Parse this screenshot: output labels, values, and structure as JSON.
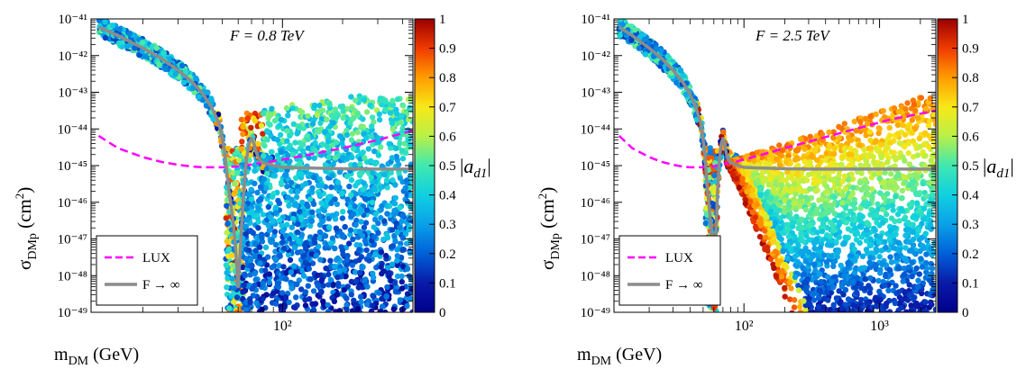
{
  "chart_data": [
    {
      "type": "scatter",
      "annotation": "F = 0.8 TeV",
      "xlabel": "m_DM (GeV)",
      "ylabel": "σ_DMp (cm²)",
      "xscale": "log",
      "yscale": "log",
      "xlim": [
        11,
        450
      ],
      "ylim": [
        1e-49,
        1e-41
      ],
      "x_ticks": [
        {
          "value": 100,
          "label": "10²"
        }
      ],
      "y_ticks": [
        {
          "value": 1e-41,
          "label": "10⁻⁴¹"
        },
        {
          "value": 1e-42,
          "label": "10⁻⁴²"
        },
        {
          "value": 1e-43,
          "label": "10⁻⁴³"
        },
        {
          "value": 1e-44,
          "label": "10⁻⁴⁴"
        },
        {
          "value": 1e-45,
          "label": "10⁻⁴⁵"
        },
        {
          "value": 1e-46,
          "label": "10⁻⁴⁶"
        },
        {
          "value": 1e-47,
          "label": "10⁻⁴⁷"
        },
        {
          "value": 1e-48,
          "label": "10⁻⁴⁸"
        },
        {
          "value": 1e-49,
          "label": "10⁻⁴⁹"
        }
      ],
      "colorbar": {
        "label": "|a_d1|",
        "min": 0,
        "max": 1,
        "ticks": [
          "0",
          "0.1",
          "0.2",
          "0.3",
          "0.4",
          "0.5",
          "0.6",
          "0.7",
          "0.8",
          "0.9",
          "1"
        ]
      },
      "legend": {
        "position": "bottom-left",
        "entries": [
          {
            "label": "LUX",
            "color": "#ff00ff",
            "style": "dashed"
          },
          {
            "label": "F → ∞",
            "color": "#8c8c8c",
            "style": "solid"
          }
        ]
      },
      "series": [
        {
          "name": "LUX",
          "color": "#ff00ff",
          "style": "dashed",
          "x": [
            12,
            15,
            20,
            25,
            30,
            35,
            40,
            50,
            60,
            80,
            100,
            150,
            200,
            300,
            450
          ],
          "y": [
            6.5e-45,
            3e-45,
            1.7e-45,
            1.25e-45,
            1.05e-45,
            9.5e-46,
            9e-46,
            9e-46,
            9.5e-46,
            1.2e-45,
            1.45e-45,
            2.2e-45,
            3e-45,
            5e-45,
            9e-45
          ]
        },
        {
          "name": "F → ∞",
          "color": "#8c8c8c",
          "style": "solid",
          "x": [
            12,
            15,
            20,
            25,
            30,
            35,
            40,
            44,
            48,
            51,
            54,
            56,
            58,
            60,
            62,
            64,
            66,
            68,
            70,
            72,
            74,
            77,
            80,
            85,
            90,
            100,
            120,
            150,
            200,
            300,
            450
          ],
          "y": [
            6e-42,
            3.5e-42,
            1.6e-42,
            8e-43,
            4e-43,
            2e-43,
            9e-44,
            4e-44,
            1.5e-44,
            3e-45,
            2e-46,
            5e-47,
            8e-48,
            5e-49,
            1.2e-47,
            2e-46,
            1.5e-45,
            4e-45,
            5.5e-45,
            4e-45,
            2.2e-45,
            1.4e-45,
            1.2e-45,
            1.1e-45,
            1e-45,
            9e-46,
            8.7e-46,
            8.5e-46,
            8.2e-46,
            8e-46,
            8e-46
          ]
        }
      ]
    },
    {
      "type": "scatter",
      "annotation": "F = 2.5 TeV",
      "xlabel": "m_DM (GeV)",
      "ylabel": "σ_DMp (cm²)",
      "xscale": "log",
      "yscale": "log",
      "xlim": [
        11,
        2600
      ],
      "ylim": [
        1e-49,
        1e-41
      ],
      "x_ticks": [
        {
          "value": 100,
          "label": "10²"
        },
        {
          "value": 1000,
          "label": "10³"
        }
      ],
      "y_ticks": [
        {
          "value": 1e-41,
          "label": "10⁻⁴¹"
        },
        {
          "value": 1e-42,
          "label": "10⁻⁴²"
        },
        {
          "value": 1e-43,
          "label": "10⁻⁴³"
        },
        {
          "value": 1e-44,
          "label": "10⁻⁴⁴"
        },
        {
          "value": 1e-45,
          "label": "10⁻⁴⁵"
        },
        {
          "value": 1e-46,
          "label": "10⁻⁴⁶"
        },
        {
          "value": 1e-47,
          "label": "10⁻⁴⁷"
        },
        {
          "value": 1e-48,
          "label": "10⁻⁴⁸"
        },
        {
          "value": 1e-49,
          "label": "10⁻⁴⁹"
        }
      ],
      "colorbar": {
        "label": "|a_d1|",
        "min": 0,
        "max": 1,
        "ticks": [
          "0",
          "0.1",
          "0.2",
          "0.3",
          "0.4",
          "0.5",
          "0.6",
          "0.7",
          "0.8",
          "0.9",
          "1"
        ]
      },
      "legend": {
        "position": "bottom-left",
        "entries": [
          {
            "label": "LUX",
            "color": "#ff00ff",
            "style": "dashed"
          },
          {
            "label": "F → ∞",
            "color": "#8c8c8c",
            "style": "solid"
          }
        ]
      },
      "series": [
        {
          "name": "LUX",
          "color": "#ff00ff",
          "style": "dashed",
          "x": [
            12,
            15,
            20,
            25,
            30,
            35,
            40,
            50,
            60,
            80,
            100,
            150,
            200,
            300,
            500,
            800,
            1200,
            2000,
            2600
          ],
          "y": [
            6.5e-45,
            3e-45,
            1.7e-45,
            1.25e-45,
            1.05e-45,
            9.5e-46,
            9e-46,
            9e-46,
            9.5e-46,
            1.2e-45,
            1.45e-45,
            2.2e-45,
            3e-45,
            4.5e-45,
            7.5e-45,
            1.2e-44,
            1.8e-44,
            2.6e-44,
            3.2e-44
          ]
        },
        {
          "name": "F → ∞",
          "color": "#8c8c8c",
          "style": "solid",
          "x": [
            12,
            15,
            20,
            25,
            30,
            35,
            40,
            44,
            48,
            51,
            54,
            56,
            58,
            60,
            62,
            64,
            66,
            68,
            70,
            72,
            74,
            77,
            80,
            85,
            90,
            100,
            120,
            150,
            200,
            300,
            500,
            1000,
            2600
          ],
          "y": [
            6e-42,
            3.5e-42,
            1.6e-42,
            8e-43,
            4e-43,
            2e-43,
            9e-44,
            4e-44,
            1.5e-44,
            3e-45,
            2e-46,
            5e-47,
            8e-48,
            5e-49,
            1.2e-47,
            2e-46,
            1.5e-45,
            4e-45,
            5.5e-45,
            4e-45,
            2.2e-45,
            1.4e-45,
            1.2e-45,
            1.1e-45,
            1e-45,
            9e-46,
            8.7e-46,
            8.5e-46,
            8.2e-46,
            8e-46,
            8e-46,
            8e-46,
            8e-46
          ]
        }
      ]
    }
  ]
}
